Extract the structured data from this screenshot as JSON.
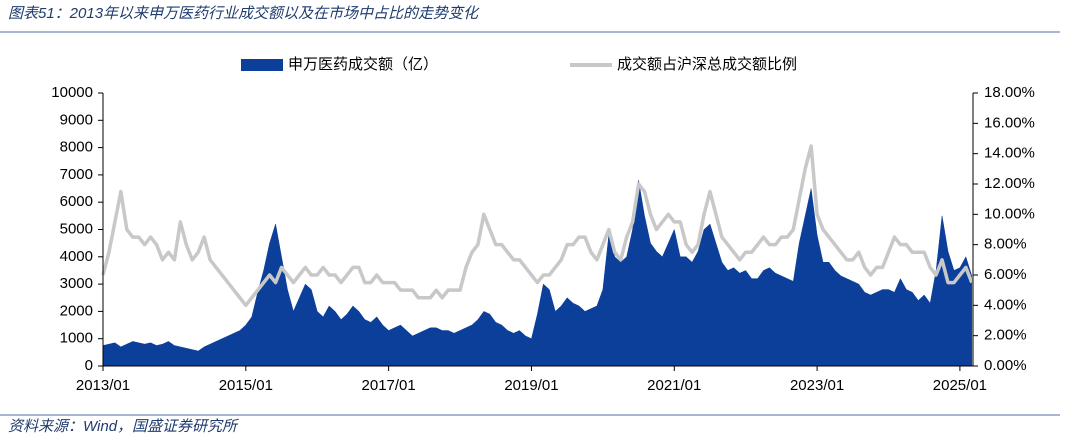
{
  "chart_data": {
    "type": "combo",
    "title": "图表51：2013年以来申万医药行业成交额以及在市场中占比的走势变化",
    "source": "资料来源：Wind，国盛证券研究所",
    "x": [
      "2013/01",
      "2013/02",
      "2013/03",
      "2013/04",
      "2013/05",
      "2013/06",
      "2013/07",
      "2013/08",
      "2013/09",
      "2013/10",
      "2013/11",
      "2013/12",
      "2014/01",
      "2014/02",
      "2014/03",
      "2014/04",
      "2014/05",
      "2014/06",
      "2014/07",
      "2014/08",
      "2014/09",
      "2014/10",
      "2014/11",
      "2014/12",
      "2015/01",
      "2015/02",
      "2015/03",
      "2015/04",
      "2015/05",
      "2015/06",
      "2015/07",
      "2015/08",
      "2015/09",
      "2015/10",
      "2015/11",
      "2015/12",
      "2016/01",
      "2016/02",
      "2016/03",
      "2016/04",
      "2016/05",
      "2016/06",
      "2016/07",
      "2016/08",
      "2016/09",
      "2016/10",
      "2016/11",
      "2016/12",
      "2017/01",
      "2017/02",
      "2017/03",
      "2017/04",
      "2017/05",
      "2017/06",
      "2017/07",
      "2017/08",
      "2017/09",
      "2017/10",
      "2017/11",
      "2017/12",
      "2018/01",
      "2018/02",
      "2018/03",
      "2018/04",
      "2018/05",
      "2018/06",
      "2018/07",
      "2018/08",
      "2018/09",
      "2018/10",
      "2018/11",
      "2018/12",
      "2019/01",
      "2019/02",
      "2019/03",
      "2019/04",
      "2019/05",
      "2019/06",
      "2019/07",
      "2019/08",
      "2019/09",
      "2019/10",
      "2019/11",
      "2019/12",
      "2020/01",
      "2020/02",
      "2020/03",
      "2020/04",
      "2020/05",
      "2020/06",
      "2020/07",
      "2020/08",
      "2020/09",
      "2020/10",
      "2020/11",
      "2020/12",
      "2021/01",
      "2021/02",
      "2021/03",
      "2021/04",
      "2021/05",
      "2021/06",
      "2021/07",
      "2021/08",
      "2021/09",
      "2021/10",
      "2021/11",
      "2021/12",
      "2022/01",
      "2022/02",
      "2022/03",
      "2022/04",
      "2022/05",
      "2022/06",
      "2022/07",
      "2022/08",
      "2022/09",
      "2022/10",
      "2022/11",
      "2022/12",
      "2023/01",
      "2023/02",
      "2023/03",
      "2023/04",
      "2023/05",
      "2023/06",
      "2023/07",
      "2023/08",
      "2023/09",
      "2023/10",
      "2023/11",
      "2023/12",
      "2024/01",
      "2024/02",
      "2024/03",
      "2024/04",
      "2024/05",
      "2024/06",
      "2024/07",
      "2024/08",
      "2024/09",
      "2024/10",
      "2024/11",
      "2024/12",
      "2025/01",
      "2025/02",
      "2025/03"
    ],
    "xticks": [
      "2013/01",
      "2015/01",
      "2017/01",
      "2019/01",
      "2021/01",
      "2023/01",
      "2025/01"
    ],
    "series": [
      {
        "name": "申万医药成交额（亿）",
        "type": "area",
        "color": "#0b3f9a",
        "axis": "y",
        "values": [
          750,
          800,
          850,
          700,
          800,
          900,
          850,
          800,
          850,
          750,
          800,
          900,
          750,
          700,
          650,
          600,
          550,
          700,
          800,
          900,
          1000,
          1100,
          1200,
          1300,
          1500,
          1800,
          2700,
          3500,
          4500,
          5200,
          4000,
          2800,
          2000,
          2500,
          3000,
          2800,
          2000,
          1800,
          2200,
          2000,
          1700,
          1900,
          2200,
          2000,
          1700,
          1600,
          1800,
          1500,
          1300,
          1400,
          1500,
          1300,
          1100,
          1200,
          1300,
          1400,
          1400,
          1300,
          1300,
          1200,
          1300,
          1400,
          1500,
          1700,
          2000,
          1900,
          1600,
          1500,
          1300,
          1200,
          1300,
          1100,
          1000,
          1900,
          3000,
          2800,
          2000,
          2200,
          2500,
          2300,
          2200,
          2000,
          2100,
          2200,
          2800,
          4800,
          4000,
          3800,
          4000,
          5000,
          6800,
          5500,
          4500,
          4200,
          4000,
          4500,
          5000,
          4000,
          4000,
          3800,
          4200,
          5000,
          5200,
          4500,
          3800,
          3500,
          3600,
          3400,
          3500,
          3200,
          3200,
          3500,
          3600,
          3400,
          3300,
          3200,
          3100,
          4500,
          5500,
          6500,
          4800,
          3800,
          3800,
          3500,
          3300,
          3200,
          3100,
          3000,
          2700,
          2600,
          2700,
          2800,
          2800,
          2700,
          3200,
          2800,
          2700,
          2400,
          2600,
          2300,
          3500,
          5500,
          4200,
          3500,
          3600,
          4000,
          3300
        ]
      },
      {
        "name": "成交额占沪深总成交额比例",
        "type": "line",
        "color": "#c8c8c8",
        "axis": "y2",
        "values": [
          6.0,
          7.5,
          9.5,
          11.5,
          9.0,
          8.5,
          8.5,
          8.0,
          8.5,
          8.0,
          7.0,
          7.5,
          7.0,
          9.5,
          8.0,
          7.0,
          7.5,
          8.5,
          7.0,
          6.5,
          6.0,
          5.5,
          5.0,
          4.5,
          4.0,
          4.5,
          5.0,
          5.5,
          6.0,
          5.5,
          6.5,
          6.0,
          5.5,
          6.0,
          6.5,
          6.0,
          6.0,
          6.5,
          6.0,
          6.0,
          5.5,
          6.0,
          6.5,
          6.5,
          5.5,
          5.5,
          6.0,
          5.5,
          5.5,
          5.5,
          5.0,
          5.0,
          5.0,
          4.5,
          4.5,
          4.5,
          5.0,
          4.5,
          5.0,
          5.0,
          5.0,
          6.5,
          7.5,
          8.0,
          10.0,
          9.0,
          8.0,
          8.0,
          7.5,
          7.0,
          7.0,
          6.5,
          6.0,
          5.5,
          6.0,
          6.0,
          6.5,
          7.0,
          8.0,
          8.0,
          8.5,
          8.5,
          7.5,
          7.0,
          8.0,
          9.0,
          7.5,
          7.0,
          8.5,
          9.5,
          12.0,
          11.5,
          10.0,
          9.0,
          9.5,
          10.0,
          9.5,
          9.5,
          8.0,
          7.5,
          8.0,
          10.0,
          11.5,
          10.0,
          8.5,
          8.0,
          7.5,
          7.0,
          7.5,
          7.5,
          8.0,
          8.5,
          8.0,
          8.0,
          8.5,
          8.5,
          9.0,
          11.0,
          13.0,
          14.5,
          10.0,
          9.0,
          8.5,
          8.0,
          7.5,
          7.0,
          7.0,
          7.5,
          6.5,
          6.0,
          6.5,
          6.5,
          7.5,
          8.5,
          8.0,
          8.0,
          7.5,
          7.5,
          7.5,
          6.5,
          6.0,
          7.0,
          5.5,
          5.5,
          6.0,
          6.5,
          5.5
        ]
      }
    ],
    "ylim": [
      0,
      10000
    ],
    "yticks": [
      0,
      1000,
      2000,
      3000,
      4000,
      5000,
      6000,
      7000,
      8000,
      9000,
      10000
    ],
    "y2lim": [
      0,
      18
    ],
    "y2ticks": [
      {
        "value": 0,
        "label": "0.00%"
      },
      {
        "value": 2,
        "label": "2.00%"
      },
      {
        "value": 4,
        "label": "4.00%"
      },
      {
        "value": 6,
        "label": "6.00%"
      },
      {
        "value": 8,
        "label": "8.00%"
      },
      {
        "value": 10,
        "label": "10.00%"
      },
      {
        "value": 12,
        "label": "12.00%"
      },
      {
        "value": 14,
        "label": "14.00%"
      },
      {
        "value": 16,
        "label": "16.00%"
      },
      {
        "value": 18,
        "label": "18.00%"
      }
    ],
    "legend": "top"
  }
}
